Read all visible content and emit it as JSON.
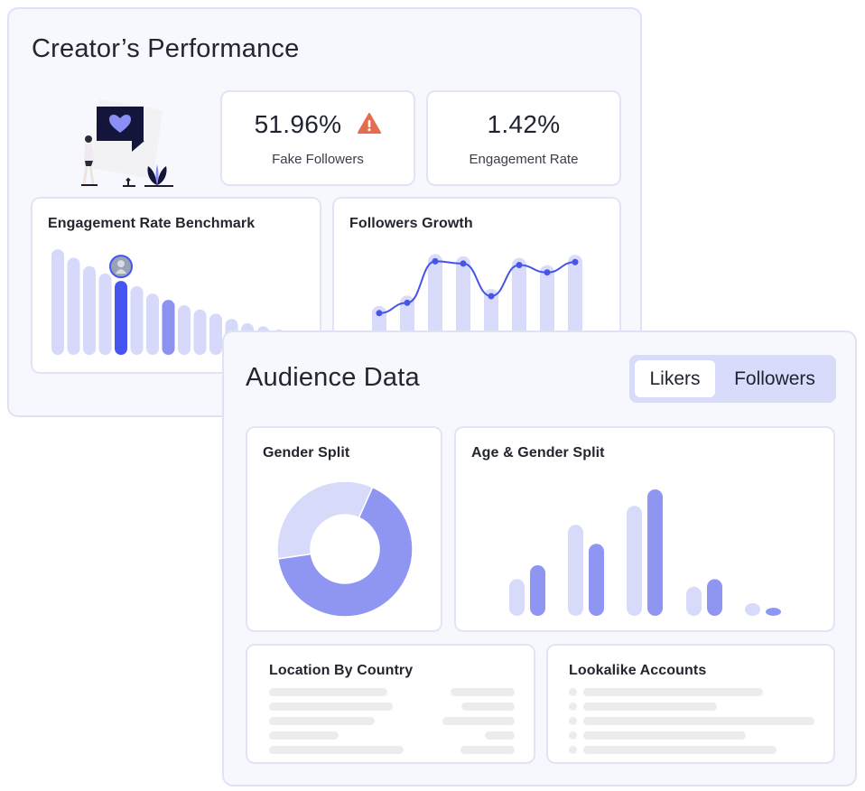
{
  "creator_performance": {
    "title": "Creator’s Performance",
    "fake_followers": {
      "value": "51.96%",
      "label": "Fake Followers",
      "icon": "warning-icon",
      "icon_color": "#e46c4f"
    },
    "engagement_rate": {
      "value": "1.42%",
      "label": "Engagement Rate"
    },
    "engagement_benchmark": {
      "title": "Engagement Rate Benchmark",
      "highlight_color": "#4654f0",
      "secondary_color": "#8c92f0",
      "bar_color": "#d6d9fa"
    },
    "followers_growth": {
      "title": "Followers Growth",
      "line_color": "#4654e8"
    }
  },
  "audience_data": {
    "title": "Audience Data",
    "tabs": [
      {
        "label": "Likers",
        "selected": true
      },
      {
        "label": "Followers",
        "selected": false
      }
    ],
    "gender_split": {
      "title": "Gender Split",
      "colors": [
        "#8e96f2",
        "#d7daf9"
      ]
    },
    "age_gender_split": {
      "title": "Age & Gender Split",
      "colors": [
        "#d7daf9",
        "#8e96f2"
      ]
    },
    "location_by_country": {
      "title": "Location By Country"
    },
    "lookalike_accounts": {
      "title": "Lookalike Accounts"
    }
  },
  "chart_data": [
    {
      "type": "bar",
      "title": "Engagement Rate Benchmark",
      "values": [
        100,
        92,
        84,
        77,
        70,
        65,
        58,
        52,
        47,
        43,
        39,
        34,
        30,
        27,
        24,
        22
      ],
      "highlighted_index": 4,
      "secondary_index": 7
    },
    {
      "type": "line",
      "title": "Followers Growth",
      "values": [
        10,
        24,
        80,
        77,
        33,
        75,
        65,
        79
      ]
    },
    {
      "type": "pie",
      "title": "Gender Split",
      "values": [
        66,
        34
      ]
    },
    {
      "type": "bar",
      "title": "Age & Gender Split",
      "series": [
        {
          "values": [
            29,
            72,
            87,
            23,
            10
          ]
        },
        {
          "values": [
            40,
            57,
            100,
            29,
            6
          ]
        }
      ]
    }
  ]
}
